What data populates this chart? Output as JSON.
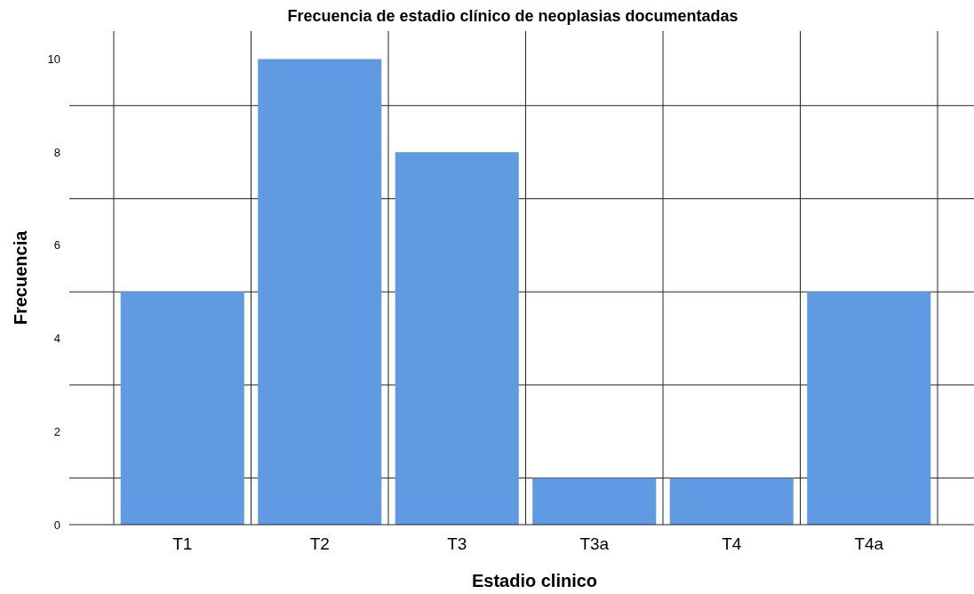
{
  "chart_data": {
    "type": "bar",
    "title": "Frecuencia de estadio clínico de neoplasias documentadas",
    "xlabel": "Estadio clinico",
    "ylabel": "Frecuencia",
    "categories": [
      "T1",
      "T2",
      "T3",
      "T3a",
      "T4",
      "T4a"
    ],
    "values": [
      5,
      10,
      8,
      1,
      1,
      5
    ],
    "color": "#5f9ae2",
    "ylim": [
      0,
      10.6
    ],
    "yticks": [
      0,
      {
        "value": 1,
        "label": null
      },
      2,
      {
        "value": 3,
        "label": null
      },
      4,
      {
        "value": 5,
        "label": null
      },
      6,
      {
        "value": 7,
        "label": null
      },
      8,
      {
        "value": 9,
        "label": null
      },
      10
    ],
    "grid": true
  }
}
